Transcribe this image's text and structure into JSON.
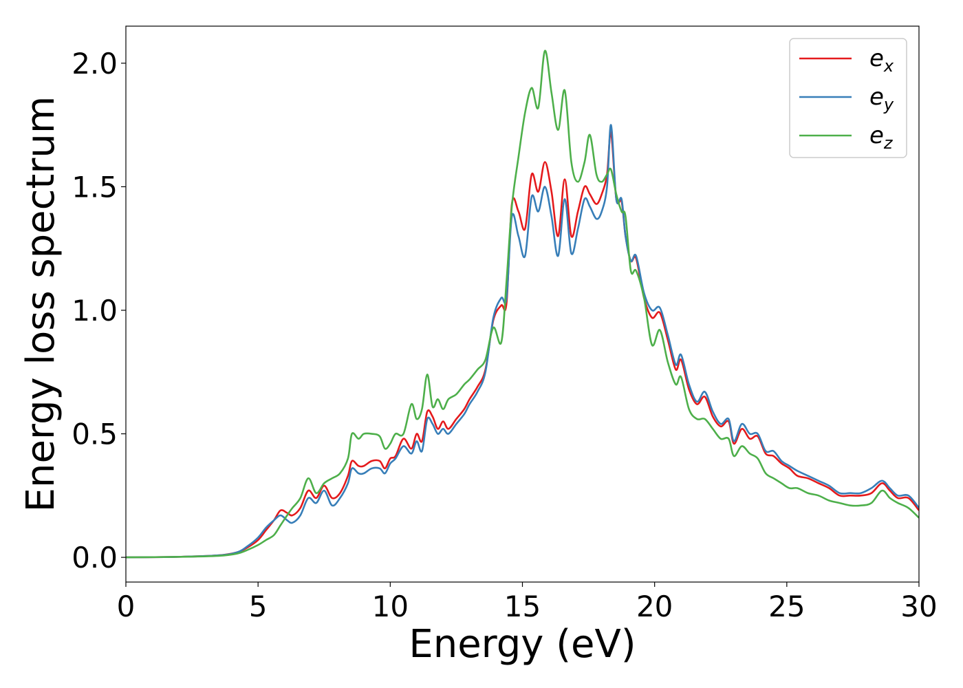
{
  "chart_data": {
    "type": "line",
    "xlabel": "Energy (eV)",
    "ylabel": "Energy loss spectrum",
    "xlim": [
      0,
      30
    ],
    "ylim": [
      -0.1,
      2.15
    ],
    "xticks": [
      0,
      5,
      10,
      15,
      20,
      25,
      30
    ],
    "xtick_labels": [
      "0",
      "5",
      "10",
      "15",
      "20",
      "25",
      "30"
    ],
    "yticks": [
      0.0,
      0.5,
      1.0,
      1.5,
      2.0
    ],
    "ytick_labels": [
      "0.0",
      "0.5",
      "1.0",
      "1.5",
      "2.0"
    ],
    "grid": false,
    "legend_position": "top-right",
    "series": [
      {
        "name": "e_x",
        "label_base": "e",
        "label_sub": "x",
        "color": "#e41a1c",
        "x": [
          0,
          2,
          3.5,
          4.2,
          4.6,
          5.0,
          5.3,
          5.6,
          5.85,
          6.1,
          6.3,
          6.6,
          6.9,
          7.2,
          7.5,
          7.8,
          8.1,
          8.4,
          8.55,
          8.8,
          9.0,
          9.3,
          9.6,
          9.8,
          10.0,
          10.2,
          10.5,
          10.8,
          11.0,
          11.2,
          11.4,
          11.6,
          11.8,
          12.0,
          12.2,
          12.5,
          12.8,
          13.0,
          13.3,
          13.6,
          13.9,
          14.2,
          14.4,
          14.6,
          14.85,
          15.1,
          15.35,
          15.6,
          15.85,
          16.1,
          16.35,
          16.6,
          16.85,
          17.1,
          17.35,
          17.55,
          17.8,
          18.0,
          18.2,
          18.35,
          18.55,
          18.75,
          18.9,
          19.1,
          19.3,
          19.6,
          19.9,
          20.2,
          20.5,
          20.8,
          21.0,
          21.3,
          21.6,
          21.9,
          22.2,
          22.5,
          22.8,
          23.0,
          23.3,
          23.6,
          23.9,
          24.2,
          24.5,
          24.8,
          25.1,
          25.4,
          25.8,
          26.2,
          26.6,
          27.0,
          27.4,
          27.8,
          28.2,
          28.6,
          28.9,
          29.2,
          29.6,
          30
        ],
        "y": [
          0.0,
          0.002,
          0.008,
          0.02,
          0.04,
          0.07,
          0.11,
          0.15,
          0.19,
          0.18,
          0.17,
          0.2,
          0.27,
          0.24,
          0.29,
          0.24,
          0.26,
          0.33,
          0.39,
          0.37,
          0.37,
          0.39,
          0.39,
          0.36,
          0.4,
          0.41,
          0.48,
          0.44,
          0.5,
          0.47,
          0.59,
          0.57,
          0.52,
          0.55,
          0.52,
          0.56,
          0.6,
          0.64,
          0.69,
          0.76,
          0.96,
          1.02,
          1.03,
          1.43,
          1.4,
          1.33,
          1.55,
          1.48,
          1.6,
          1.48,
          1.3,
          1.53,
          1.3,
          1.4,
          1.5,
          1.47,
          1.43,
          1.47,
          1.55,
          1.72,
          1.45,
          1.44,
          1.3,
          1.2,
          1.21,
          1.05,
          0.97,
          0.99,
          0.88,
          0.76,
          0.8,
          0.68,
          0.62,
          0.65,
          0.57,
          0.53,
          0.55,
          0.46,
          0.52,
          0.48,
          0.49,
          0.42,
          0.41,
          0.38,
          0.36,
          0.33,
          0.32,
          0.3,
          0.28,
          0.25,
          0.25,
          0.25,
          0.26,
          0.3,
          0.27,
          0.24,
          0.24,
          0.19
        ]
      },
      {
        "name": "e_y",
        "label_base": "e",
        "label_sub": "y",
        "color": "#377eb8",
        "x": [
          0,
          2,
          3.5,
          4.2,
          4.6,
          5.0,
          5.3,
          5.6,
          5.85,
          6.1,
          6.3,
          6.6,
          6.9,
          7.2,
          7.5,
          7.8,
          8.1,
          8.4,
          8.55,
          8.8,
          9.0,
          9.3,
          9.6,
          9.8,
          10.0,
          10.2,
          10.5,
          10.8,
          11.0,
          11.2,
          11.4,
          11.6,
          11.8,
          12.0,
          12.2,
          12.5,
          12.8,
          13.0,
          13.3,
          13.6,
          13.9,
          14.2,
          14.4,
          14.6,
          14.85,
          15.1,
          15.35,
          15.6,
          15.85,
          16.1,
          16.35,
          16.6,
          16.85,
          17.1,
          17.35,
          17.55,
          17.8,
          18.0,
          18.2,
          18.35,
          18.55,
          18.75,
          18.9,
          19.1,
          19.3,
          19.6,
          19.9,
          20.2,
          20.5,
          20.8,
          21.0,
          21.3,
          21.6,
          21.9,
          22.2,
          22.5,
          22.8,
          23.0,
          23.3,
          23.6,
          23.9,
          24.2,
          24.5,
          24.8,
          25.1,
          25.4,
          25.8,
          26.2,
          26.6,
          27.0,
          27.4,
          27.8,
          28.2,
          28.6,
          28.9,
          29.2,
          29.6,
          30
        ],
        "y": [
          0.0,
          0.002,
          0.008,
          0.02,
          0.045,
          0.08,
          0.12,
          0.15,
          0.17,
          0.15,
          0.14,
          0.17,
          0.24,
          0.22,
          0.27,
          0.21,
          0.24,
          0.3,
          0.36,
          0.34,
          0.34,
          0.36,
          0.36,
          0.34,
          0.38,
          0.4,
          0.45,
          0.42,
          0.47,
          0.43,
          0.56,
          0.54,
          0.5,
          0.52,
          0.5,
          0.54,
          0.58,
          0.62,
          0.67,
          0.75,
          0.97,
          1.05,
          1.05,
          1.38,
          1.3,
          1.22,
          1.46,
          1.4,
          1.5,
          1.38,
          1.22,
          1.45,
          1.23,
          1.33,
          1.45,
          1.42,
          1.37,
          1.4,
          1.5,
          1.75,
          1.45,
          1.45,
          1.3,
          1.2,
          1.22,
          1.07,
          1.0,
          1.01,
          0.9,
          0.78,
          0.82,
          0.7,
          0.63,
          0.67,
          0.59,
          0.54,
          0.56,
          0.47,
          0.54,
          0.5,
          0.5,
          0.43,
          0.43,
          0.39,
          0.37,
          0.35,
          0.33,
          0.31,
          0.29,
          0.26,
          0.26,
          0.26,
          0.28,
          0.31,
          0.28,
          0.25,
          0.25,
          0.2
        ]
      },
      {
        "name": "e_z",
        "label_base": "e",
        "label_sub": "z",
        "color": "#4daf4a",
        "x": [
          0,
          2,
          3.5,
          4.2,
          4.6,
          5.0,
          5.3,
          5.6,
          5.85,
          6.1,
          6.3,
          6.6,
          6.9,
          7.2,
          7.5,
          7.8,
          8.1,
          8.4,
          8.55,
          8.8,
          9.0,
          9.3,
          9.6,
          9.8,
          10.0,
          10.2,
          10.5,
          10.8,
          11.0,
          11.2,
          11.4,
          11.6,
          11.8,
          12.0,
          12.2,
          12.5,
          12.8,
          13.0,
          13.3,
          13.6,
          13.9,
          14.2,
          14.4,
          14.6,
          14.85,
          15.1,
          15.35,
          15.6,
          15.85,
          16.1,
          16.35,
          16.6,
          16.85,
          17.1,
          17.35,
          17.55,
          17.8,
          18.0,
          18.2,
          18.35,
          18.55,
          18.75,
          18.9,
          19.1,
          19.3,
          19.6,
          19.9,
          20.2,
          20.5,
          20.8,
          21.0,
          21.3,
          21.6,
          21.9,
          22.2,
          22.5,
          22.8,
          23.0,
          23.3,
          23.6,
          23.9,
          24.2,
          24.5,
          24.8,
          25.1,
          25.4,
          25.8,
          26.2,
          26.6,
          27.0,
          27.4,
          27.8,
          28.2,
          28.6,
          28.9,
          29.2,
          29.6,
          30
        ],
        "y": [
          0.0,
          0.002,
          0.006,
          0.015,
          0.03,
          0.05,
          0.07,
          0.09,
          0.13,
          0.17,
          0.2,
          0.24,
          0.32,
          0.26,
          0.3,
          0.32,
          0.34,
          0.4,
          0.5,
          0.48,
          0.5,
          0.5,
          0.49,
          0.44,
          0.46,
          0.5,
          0.5,
          0.62,
          0.56,
          0.6,
          0.74,
          0.61,
          0.64,
          0.6,
          0.64,
          0.66,
          0.7,
          0.72,
          0.76,
          0.8,
          0.93,
          0.87,
          1.12,
          1.42,
          1.62,
          1.8,
          1.9,
          1.82,
          2.05,
          1.88,
          1.73,
          1.89,
          1.6,
          1.52,
          1.6,
          1.71,
          1.55,
          1.52,
          1.55,
          1.57,
          1.47,
          1.4,
          1.38,
          1.16,
          1.16,
          1.05,
          0.86,
          0.92,
          0.79,
          0.7,
          0.73,
          0.6,
          0.56,
          0.56,
          0.52,
          0.48,
          0.48,
          0.41,
          0.45,
          0.42,
          0.4,
          0.34,
          0.32,
          0.3,
          0.28,
          0.28,
          0.26,
          0.25,
          0.23,
          0.22,
          0.21,
          0.21,
          0.22,
          0.27,
          0.24,
          0.22,
          0.2,
          0.16
        ]
      }
    ]
  }
}
